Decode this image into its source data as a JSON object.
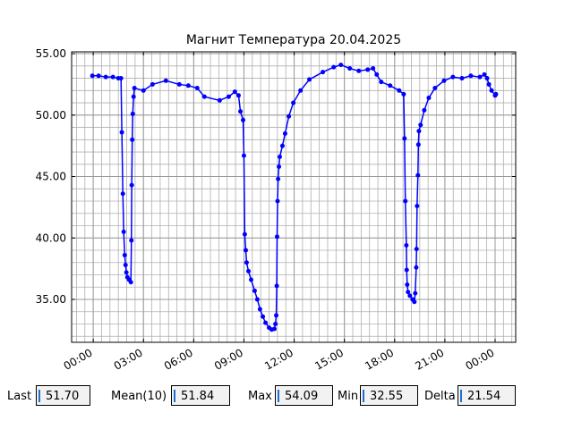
{
  "chart_data": {
    "type": "line",
    "title": "Магнит Температура 20.04.2025",
    "x": [
      -0.05,
      0.32,
      0.75,
      1.18,
      1.5,
      1.66,
      1.71,
      1.77,
      1.82,
      1.88,
      1.93,
      1.98,
      2.04,
      2.14,
      2.25,
      2.28,
      2.3,
      2.33,
      2.36,
      2.41,
      2.46,
      3.0,
      3.54,
      4.34,
      5.14,
      5.68,
      6.21,
      6.64,
      7.55,
      8.09,
      8.46,
      8.68,
      8.79,
      8.95,
      9.0,
      9.05,
      9.11,
      9.16,
      9.27,
      9.43,
      9.64,
      9.8,
      9.96,
      10.13,
      10.29,
      10.5,
      10.66,
      10.82,
      10.88,
      10.93,
      10.96,
      10.98,
      11.01,
      11.04,
      11.09,
      11.14,
      11.3,
      11.46,
      11.68,
      11.95,
      12.38,
      12.91,
      13.71,
      14.36,
      14.79,
      15.32,
      15.86,
      16.39,
      16.71,
      16.93,
      17.2,
      17.73,
      18.27,
      18.54,
      18.59,
      18.64,
      18.7,
      18.72,
      18.75,
      18.8,
      18.91,
      19.07,
      19.18,
      19.23,
      19.29,
      19.31,
      19.34,
      19.39,
      19.42,
      19.45,
      19.55,
      19.77,
      20.04,
      20.41,
      20.95,
      21.48,
      22.02,
      22.55,
      23.09,
      23.36,
      23.52,
      23.63,
      23.79,
      24.0,
      24.05
    ],
    "series": [
      {
        "name": "Температура",
        "color": "#0000ff",
        "values": [
          53.2,
          53.2,
          53.1,
          53.1,
          53.0,
          53.0,
          48.6,
          43.6,
          40.5,
          38.6,
          37.8,
          37.2,
          36.8,
          36.6,
          36.4,
          39.8,
          44.3,
          48.0,
          50.1,
          51.5,
          52.2,
          52.0,
          52.5,
          52.8,
          52.5,
          52.4,
          52.2,
          51.5,
          51.2,
          51.5,
          51.9,
          51.6,
          50.3,
          49.6,
          46.7,
          40.3,
          39.0,
          38.0,
          37.3,
          36.6,
          35.7,
          35.0,
          34.2,
          33.6,
          33.1,
          32.7,
          32.55,
          32.6,
          33.0,
          33.7,
          36.1,
          40.1,
          43.0,
          44.8,
          45.8,
          46.6,
          47.5,
          48.5,
          49.9,
          51.0,
          52.0,
          52.9,
          53.5,
          53.9,
          54.09,
          53.8,
          53.6,
          53.7,
          53.8,
          53.3,
          52.7,
          52.4,
          52.0,
          51.7,
          48.1,
          43.0,
          39.4,
          37.4,
          36.2,
          35.6,
          35.3,
          35.0,
          34.8,
          35.5,
          37.6,
          39.1,
          42.6,
          45.1,
          47.6,
          48.7,
          49.2,
          50.4,
          51.4,
          52.2,
          52.8,
          53.1,
          53.0,
          53.2,
          53.1,
          53.3,
          53.0,
          52.5,
          52.0,
          51.6,
          51.7
        ]
      }
    ],
    "xlim": [
      -1.29,
      25.23
    ],
    "xticks": [
      {
        "value": 0,
        "label": "00:00"
      },
      {
        "value": 3,
        "label": "03:00"
      },
      {
        "value": 6,
        "label": "06:00"
      },
      {
        "value": 9,
        "label": "09:00"
      },
      {
        "value": 12,
        "label": "12:00"
      },
      {
        "value": 15,
        "label": "15:00"
      },
      {
        "value": 18,
        "label": "18:00"
      },
      {
        "value": 21,
        "label": "21:00"
      },
      {
        "value": 24,
        "label": "00:00"
      }
    ],
    "ylim": [
      31.51,
      55.15
    ],
    "yticks": [
      {
        "value": 35,
        "label": "35.00"
      },
      {
        "value": 40,
        "label": "40.00"
      },
      {
        "value": 45,
        "label": "45.00"
      },
      {
        "value": 50,
        "label": "50.00"
      },
      {
        "value": 55,
        "label": "55.00"
      }
    ],
    "grid": true
  },
  "stats": [
    {
      "label": "Last",
      "value": "51.70"
    },
    {
      "label": "Mean(10)",
      "value": "51.84"
    },
    {
      "label": "Max",
      "value": "54.09"
    },
    {
      "label": "Min",
      "value": "32.55"
    },
    {
      "label": "Delta",
      "value": "21.54"
    }
  ]
}
